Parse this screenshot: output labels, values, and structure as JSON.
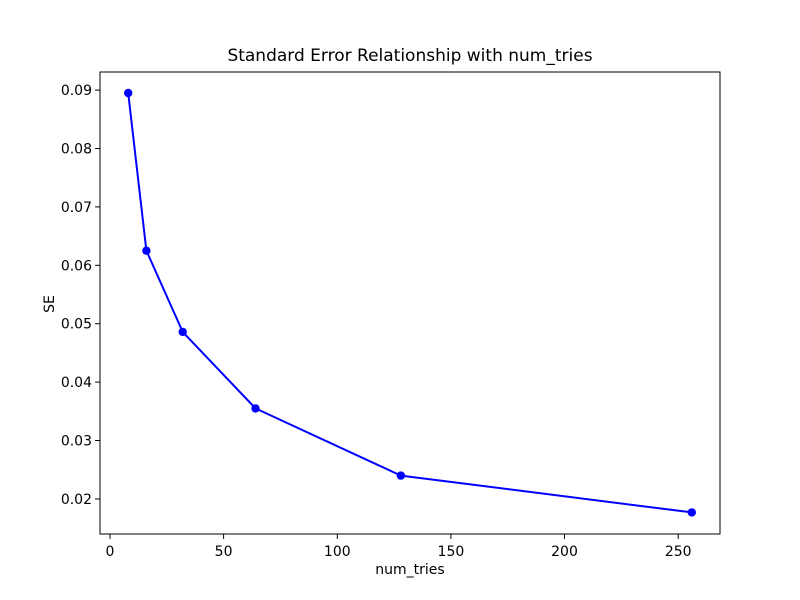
{
  "figure": {
    "background": "#ffffff",
    "text_color": "#000000",
    "axis_color": "#000000"
  },
  "chart_data": {
    "type": "line",
    "title": "Standard Error Relationship with num_tries",
    "xlabel": "num_tries",
    "ylabel": "SE",
    "series": [
      {
        "name": "SE",
        "x": [
          8,
          16,
          32,
          64,
          128,
          256
        ],
        "y": [
          0.0895,
          0.0625,
          0.0486,
          0.0355,
          0.024,
          0.0177
        ],
        "color": "#0000ff",
        "marker": "circle",
        "marker_radius": 4.2,
        "line_width": 2,
        "line_style": "solid"
      }
    ],
    "xlim": [
      -4.4,
      268.4
    ],
    "ylim": [
      0.014,
      0.0931
    ],
    "xticks": [
      0,
      50,
      100,
      150,
      200,
      250
    ],
    "xtick_labels": [
      "0",
      "50",
      "100",
      "150",
      "200",
      "250"
    ],
    "yticks": [
      0.02,
      0.03,
      0.04,
      0.05,
      0.06,
      0.07,
      0.08,
      0.09
    ],
    "ytick_labels": [
      "0.02",
      "0.03",
      "0.04",
      "0.05",
      "0.06",
      "0.07",
      "0.08",
      "0.09"
    ],
    "grid": false,
    "legend_position": "none"
  }
}
